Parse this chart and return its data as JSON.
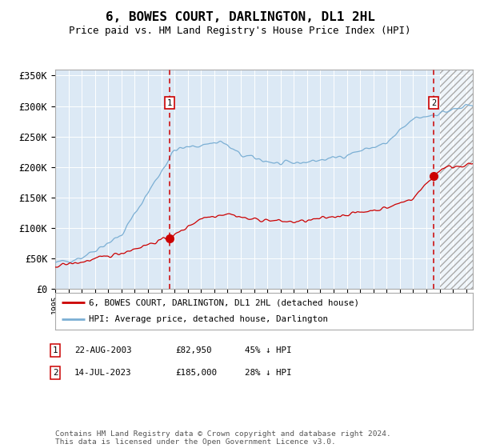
{
  "title": "6, BOWES COURT, DARLINGTON, DL1 2HL",
  "subtitle": "Price paid vs. HM Land Registry's House Price Index (HPI)",
  "ylim": [
    0,
    360000
  ],
  "yticks": [
    0,
    50000,
    100000,
    150000,
    200000,
    250000,
    300000,
    350000
  ],
  "ytick_labels": [
    "£0",
    "£50K",
    "£100K",
    "£150K",
    "£200K",
    "£250K",
    "£300K",
    "£350K"
  ],
  "hpi_color": "#7bafd4",
  "price_color": "#cc0000",
  "plot_bg_color": "#dce9f5",
  "transaction1_price": 82950,
  "transaction1_x": 2003.64,
  "transaction2_price": 185000,
  "transaction2_x": 2023.54,
  "legend_label1": "6, BOWES COURT, DARLINGTON, DL1 2HL (detached house)",
  "legend_label2": "HPI: Average price, detached house, Darlington",
  "table_row1": [
    "1",
    "22-AUG-2003",
    "£82,950",
    "45% ↓ HPI"
  ],
  "table_row2": [
    "2",
    "14-JUL-2023",
    "£185,000",
    "28% ↓ HPI"
  ],
  "footer": "Contains HM Land Registry data © Crown copyright and database right 2024.\nThis data is licensed under the Open Government Licence v3.0.",
  "xmin": 1995.0,
  "xmax": 2026.5
}
